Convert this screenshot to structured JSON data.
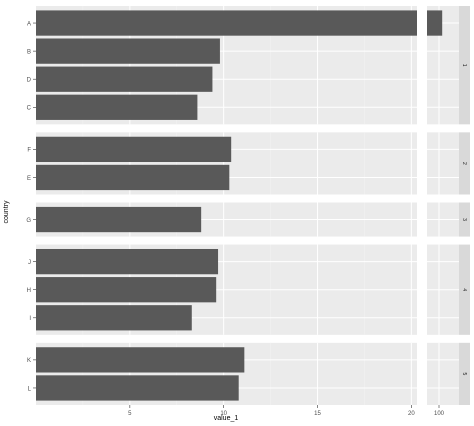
{
  "chart_data": {
    "type": "bar",
    "orientation": "horizontal",
    "faceted": true,
    "facet_strip_position": "right",
    "x_break_panels": true,
    "xlabel": "value_1",
    "ylabel": "country",
    "grid": true,
    "x_ticks_main": [
      5,
      10,
      15,
      20
    ],
    "xlim_main": [
      0,
      20.3
    ],
    "x_ticks_break": [
      100
    ],
    "xlim_break": [
      97,
      105
    ],
    "facets": [
      {
        "strip": "1",
        "categories": [
          "A",
          "B",
          "D",
          "C"
        ],
        "values": [
          100.8,
          9.8,
          9.4,
          8.6
        ]
      },
      {
        "strip": "2",
        "categories": [
          "F",
          "E"
        ],
        "values": [
          10.4,
          10.3
        ]
      },
      {
        "strip": "3",
        "categories": [
          "G"
        ],
        "values": [
          8.8
        ]
      },
      {
        "strip": "4",
        "categories": [
          "J",
          "H",
          "I"
        ],
        "values": [
          9.7,
          9.6,
          8.3
        ]
      },
      {
        "strip": "5",
        "categories": [
          "K",
          "L"
        ],
        "values": [
          11.1,
          10.8
        ]
      }
    ],
    "colors": {
      "bar": "#595959",
      "panel": "#ebebeb",
      "grid_major": "#ffffff",
      "grid_minor": "#f3f3f3",
      "strip": "#d9d9d9",
      "text": "#4d4d4d"
    }
  }
}
